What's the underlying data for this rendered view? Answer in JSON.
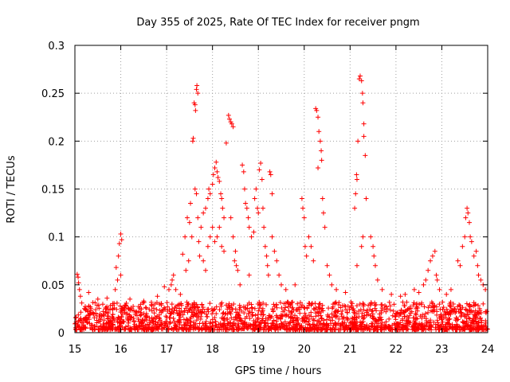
{
  "chart_data": {
    "type": "scatter",
    "title": "Day 355 of 2025, Rate Of TEC Index for receiver pngm",
    "xlabel": "GPS time / hours",
    "ylabel": "ROTI / TECUs",
    "xlim": [
      15,
      24
    ],
    "ylim": [
      0,
      0.3
    ],
    "xticks": [
      15,
      16,
      17,
      18,
      19,
      20,
      21,
      22,
      23,
      24
    ],
    "yticks": [
      0,
      0.05,
      0.1,
      0.15,
      0.2,
      0.25,
      0.3
    ],
    "xtick_labels": [
      "15",
      "16",
      "17",
      "18",
      "19",
      "20",
      "21",
      "22",
      "23",
      "24"
    ],
    "ytick_labels": [
      "0",
      "0.05",
      "0.1",
      "0.15",
      "0.2",
      "0.25",
      "0.3"
    ],
    "grid": true,
    "marker": "+",
    "color": "#ff0000",
    "baseline_band": {
      "x_range": [
        15,
        24
      ],
      "y_range": [
        0.003,
        0.032
      ],
      "note": "dense background cloud of points"
    },
    "series": [
      {
        "name": "ROTI",
        "points": [
          [
            15.05,
            0.061
          ],
          [
            15.07,
            0.058
          ],
          [
            15.08,
            0.052
          ],
          [
            15.1,
            0.045
          ],
          [
            15.12,
            0.038
          ],
          [
            15.15,
            0.031
          ],
          [
            15.9,
            0.068
          ],
          [
            15.95,
            0.08
          ],
          [
            15.97,
            0.093
          ],
          [
            16.0,
            0.103
          ],
          [
            16.02,
            0.097
          ],
          [
            15.93,
            0.055
          ],
          [
            16.0,
            0.06
          ],
          [
            15.88,
            0.045
          ],
          [
            16.95,
            0.048
          ],
          [
            17.05,
            0.045
          ],
          [
            17.1,
            0.05
          ],
          [
            17.12,
            0.055
          ],
          [
            17.15,
            0.06
          ],
          [
            17.35,
            0.082
          ],
          [
            17.4,
            0.1
          ],
          [
            17.45,
            0.12
          ],
          [
            17.5,
            0.115
          ],
          [
            17.52,
            0.135
          ],
          [
            17.55,
            0.1
          ],
          [
            17.48,
            0.075
          ],
          [
            17.42,
            0.065
          ],
          [
            17.57,
            0.2
          ],
          [
            17.58,
            0.203
          ],
          [
            17.6,
            0.24
          ],
          [
            17.62,
            0.238
          ],
          [
            17.63,
            0.232
          ],
          [
            17.65,
            0.254
          ],
          [
            17.66,
            0.258
          ],
          [
            17.68,
            0.25
          ],
          [
            17.62,
            0.15
          ],
          [
            17.65,
            0.145
          ],
          [
            17.68,
            0.12
          ],
          [
            17.7,
            0.095
          ],
          [
            17.72,
            0.08
          ],
          [
            17.75,
            0.11
          ],
          [
            17.8,
            0.125
          ],
          [
            17.85,
            0.13
          ],
          [
            17.9,
            0.14
          ],
          [
            17.92,
            0.15
          ],
          [
            17.95,
            0.145
          ],
          [
            18.0,
            0.155
          ],
          [
            18.02,
            0.165
          ],
          [
            18.05,
            0.172
          ],
          [
            18.08,
            0.178
          ],
          [
            18.1,
            0.168
          ],
          [
            18.12,
            0.162
          ],
          [
            18.15,
            0.158
          ],
          [
            18.18,
            0.145
          ],
          [
            18.2,
            0.14
          ],
          [
            18.22,
            0.13
          ],
          [
            18.25,
            0.12
          ],
          [
            17.8,
            0.075
          ],
          [
            17.85,
            0.065
          ],
          [
            17.9,
            0.09
          ],
          [
            17.95,
            0.1
          ],
          [
            18.0,
            0.11
          ],
          [
            18.05,
            0.095
          ],
          [
            18.1,
            0.1
          ],
          [
            18.15,
            0.11
          ],
          [
            18.2,
            0.09
          ],
          [
            18.25,
            0.085
          ],
          [
            18.3,
            0.198
          ],
          [
            18.35,
            0.227
          ],
          [
            18.37,
            0.223
          ],
          [
            18.4,
            0.22
          ],
          [
            18.42,
            0.218
          ],
          [
            18.45,
            0.215
          ],
          [
            18.4,
            0.12
          ],
          [
            18.45,
            0.1
          ],
          [
            18.5,
            0.085
          ],
          [
            18.52,
            0.07
          ],
          [
            18.55,
            0.065
          ],
          [
            18.48,
            0.075
          ],
          [
            18.65,
            0.175
          ],
          [
            18.68,
            0.168
          ],
          [
            18.7,
            0.15
          ],
          [
            18.72,
            0.135
          ],
          [
            18.75,
            0.13
          ],
          [
            18.78,
            0.12
          ],
          [
            18.8,
            0.11
          ],
          [
            18.85,
            0.1
          ],
          [
            18.9,
            0.105
          ],
          [
            18.92,
            0.14
          ],
          [
            18.95,
            0.15
          ],
          [
            18.98,
            0.13
          ],
          [
            19.0,
            0.125
          ],
          [
            19.02,
            0.17
          ],
          [
            19.05,
            0.177
          ],
          [
            19.08,
            0.16
          ],
          [
            19.1,
            0.13
          ],
          [
            19.12,
            0.11
          ],
          [
            19.15,
            0.09
          ],
          [
            19.18,
            0.08
          ],
          [
            19.2,
            0.07
          ],
          [
            19.22,
            0.06
          ],
          [
            19.25,
            0.168
          ],
          [
            19.27,
            0.165
          ],
          [
            19.3,
            0.145
          ],
          [
            19.3,
            0.1
          ],
          [
            19.35,
            0.085
          ],
          [
            19.4,
            0.075
          ],
          [
            19.45,
            0.06
          ],
          [
            19.5,
            0.05
          ],
          [
            19.95,
            0.14
          ],
          [
            19.97,
            0.13
          ],
          [
            20.0,
            0.12
          ],
          [
            20.02,
            0.09
          ],
          [
            20.05,
            0.08
          ],
          [
            20.1,
            0.1
          ],
          [
            20.15,
            0.09
          ],
          [
            20.2,
            0.075
          ],
          [
            20.25,
            0.234
          ],
          [
            20.27,
            0.232
          ],
          [
            20.3,
            0.225
          ],
          [
            20.32,
            0.21
          ],
          [
            20.35,
            0.2
          ],
          [
            20.37,
            0.19
          ],
          [
            20.38,
            0.18
          ],
          [
            20.3,
            0.172
          ],
          [
            20.4,
            0.14
          ],
          [
            20.42,
            0.125
          ],
          [
            20.45,
            0.11
          ],
          [
            20.5,
            0.07
          ],
          [
            20.55,
            0.06
          ],
          [
            20.6,
            0.05
          ],
          [
            21.1,
            0.13
          ],
          [
            21.12,
            0.145
          ],
          [
            21.14,
            0.165
          ],
          [
            21.15,
            0.16
          ],
          [
            21.17,
            0.2
          ],
          [
            21.2,
            0.265
          ],
          [
            21.22,
            0.268
          ],
          [
            21.25,
            0.263
          ],
          [
            21.27,
            0.25
          ],
          [
            21.28,
            0.24
          ],
          [
            21.3,
            0.218
          ],
          [
            21.3,
            0.205
          ],
          [
            21.33,
            0.185
          ],
          [
            21.35,
            0.14
          ],
          [
            21.28,
            0.1
          ],
          [
            21.25,
            0.09
          ],
          [
            21.45,
            0.1
          ],
          [
            21.5,
            0.09
          ],
          [
            21.52,
            0.08
          ],
          [
            21.55,
            0.07
          ],
          [
            21.6,
            0.055
          ],
          [
            21.15,
            0.07
          ],
          [
            22.2,
            0.04
          ],
          [
            22.4,
            0.045
          ],
          [
            22.6,
            0.05
          ],
          [
            22.65,
            0.055
          ],
          [
            22.7,
            0.065
          ],
          [
            22.75,
            0.075
          ],
          [
            22.8,
            0.08
          ],
          [
            22.85,
            0.085
          ],
          [
            22.88,
            0.06
          ],
          [
            22.9,
            0.055
          ],
          [
            22.95,
            0.045
          ],
          [
            23.35,
            0.075
          ],
          [
            23.4,
            0.07
          ],
          [
            23.45,
            0.09
          ],
          [
            23.5,
            0.1
          ],
          [
            23.52,
            0.12
          ],
          [
            23.55,
            0.13
          ],
          [
            23.57,
            0.125
          ],
          [
            23.6,
            0.115
          ],
          [
            23.62,
            0.1
          ],
          [
            23.65,
            0.095
          ],
          [
            23.7,
            0.08
          ],
          [
            23.75,
            0.085
          ],
          [
            23.78,
            0.07
          ],
          [
            23.8,
            0.06
          ],
          [
            23.85,
            0.055
          ],
          [
            23.9,
            0.05
          ],
          [
            23.95,
            0.045
          ],
          [
            15.3,
            0.042
          ],
          [
            15.5,
            0.035
          ],
          [
            15.7,
            0.036
          ],
          [
            16.2,
            0.035
          ],
          [
            16.5,
            0.033
          ],
          [
            16.8,
            0.038
          ],
          [
            17.2,
            0.045
          ],
          [
            17.3,
            0.04
          ],
          [
            18.6,
            0.05
          ],
          [
            18.8,
            0.06
          ],
          [
            19.6,
            0.045
          ],
          [
            19.8,
            0.05
          ],
          [
            20.7,
            0.045
          ],
          [
            20.9,
            0.042
          ],
          [
            21.7,
            0.045
          ],
          [
            21.9,
            0.04
          ],
          [
            22.1,
            0.038
          ],
          [
            22.5,
            0.042
          ],
          [
            23.1,
            0.04
          ],
          [
            23.2,
            0.045
          ]
        ]
      }
    ]
  }
}
